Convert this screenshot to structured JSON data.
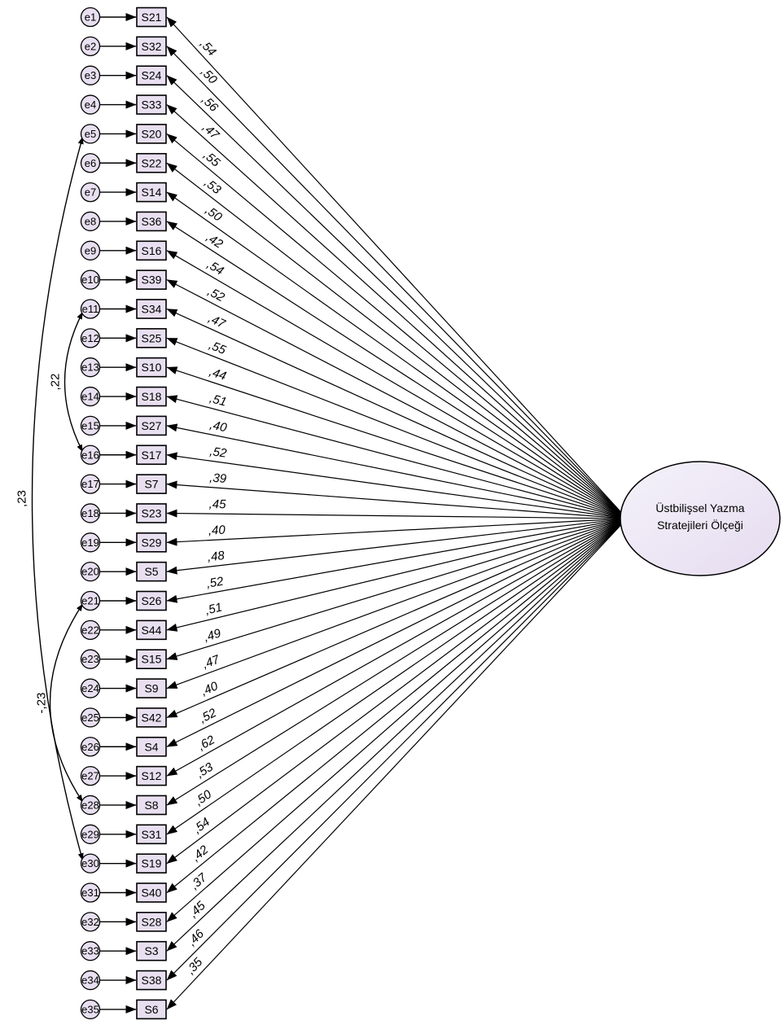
{
  "latent": {
    "label_lines": [
      "Üstbilişsel Yazma",
      "Stratejileri Ölçeği"
    ],
    "fill_start": "#f4f2fa",
    "fill_end": "#e6dcf0"
  },
  "colors": {
    "node_fill": "#e8dff0",
    "stroke": "#000000"
  },
  "indicators": [
    {
      "error": "e1",
      "item": "S21",
      "loading": ",54"
    },
    {
      "error": "e2",
      "item": "S32",
      "loading": ",50"
    },
    {
      "error": "e3",
      "item": "S24",
      "loading": ",56"
    },
    {
      "error": "e4",
      "item": "S33",
      "loading": ",47"
    },
    {
      "error": "e5",
      "item": "S20",
      "loading": ",55"
    },
    {
      "error": "e6",
      "item": "S22",
      "loading": ",53"
    },
    {
      "error": "e7",
      "item": "S14",
      "loading": ",50"
    },
    {
      "error": "e8",
      "item": "S36",
      "loading": ",42"
    },
    {
      "error": "e9",
      "item": "S16",
      "loading": ",54"
    },
    {
      "error": "e10",
      "item": "S39",
      "loading": ",52"
    },
    {
      "error": "e11",
      "item": "S34",
      "loading": ",47"
    },
    {
      "error": "e12",
      "item": "S25",
      "loading": ",55"
    },
    {
      "error": "e13",
      "item": "S10",
      "loading": ",44"
    },
    {
      "error": "e14",
      "item": "S18",
      "loading": ",51"
    },
    {
      "error": "e15",
      "item": "S27",
      "loading": ",40"
    },
    {
      "error": "e16",
      "item": "S17",
      "loading": ",52"
    },
    {
      "error": "e17",
      "item": "S7",
      "loading": ",39"
    },
    {
      "error": "e18",
      "item": "S23",
      "loading": ",45"
    },
    {
      "error": "e19",
      "item": "S29",
      "loading": ",40"
    },
    {
      "error": "e20",
      "item": "S5",
      "loading": ",48"
    },
    {
      "error": "e21",
      "item": "S26",
      "loading": ",52"
    },
    {
      "error": "e22",
      "item": "S44",
      "loading": ",51"
    },
    {
      "error": "e23",
      "item": "S15",
      "loading": ",49"
    },
    {
      "error": "e24",
      "item": "S9",
      "loading": ",47"
    },
    {
      "error": "e25",
      "item": "S42",
      "loading": ",40"
    },
    {
      "error": "e26",
      "item": "S4",
      "loading": ",52"
    },
    {
      "error": "e27",
      "item": "S12",
      "loading": ",62"
    },
    {
      "error": "e28",
      "item": "S8",
      "loading": ",53"
    },
    {
      "error": "e29",
      "item": "S31",
      "loading": ",50"
    },
    {
      "error": "e30",
      "item": "S19",
      "loading": ",54"
    },
    {
      "error": "e31",
      "item": "S40",
      "loading": ",42"
    },
    {
      "error": "e32",
      "item": "S28",
      "loading": ",37"
    },
    {
      "error": "e33",
      "item": "S3",
      "loading": ",45"
    },
    {
      "error": "e34",
      "item": "S38",
      "loading": ",46"
    },
    {
      "error": "e35",
      "item": "S6",
      "loading": ",35"
    }
  ],
  "covariances": [
    {
      "from": "e5",
      "to": "e30",
      "value": ",23"
    },
    {
      "from": "e11",
      "to": "e16",
      "value": ",22"
    },
    {
      "from": "e21",
      "to": "e28",
      "value": "-,23"
    }
  ]
}
